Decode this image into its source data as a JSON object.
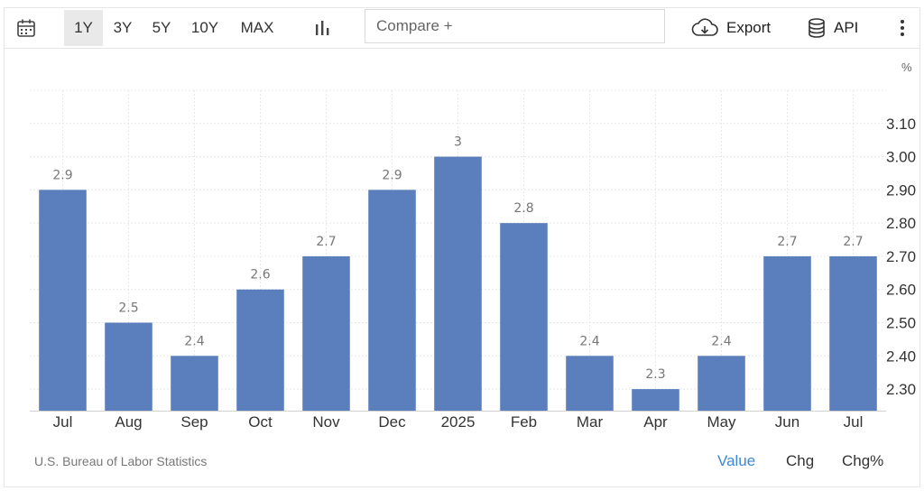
{
  "toolbar": {
    "ranges": [
      "1Y",
      "3Y",
      "5Y",
      "10Y",
      "MAX"
    ],
    "active_range": "1Y",
    "compare_placeholder": "Compare +",
    "export_label": "Export",
    "api_label": "API",
    "icons": [
      "calendar-icon",
      "bar-chart-icon",
      "cloud-download-icon",
      "database-icon",
      "more-vertical-icon"
    ]
  },
  "unit_label": "%",
  "source": "U.S. Bureau of Labor Statistics",
  "view_options": [
    {
      "label": "Value",
      "active": true
    },
    {
      "label": "Chg",
      "active": false
    },
    {
      "label": "Chg%",
      "active": false
    }
  ],
  "colors": {
    "bar": "#5b7fbd",
    "active_link": "#3d88d6",
    "grid": "#e8e8e8",
    "data_label": "#777777"
  },
  "chart_data": {
    "type": "bar",
    "categories": [
      "Jul",
      "Aug",
      "Sep",
      "Oct",
      "Nov",
      "Dec",
      "2025",
      "Feb",
      "Mar",
      "Apr",
      "May",
      "Jun",
      "Jul"
    ],
    "values": [
      2.9,
      2.5,
      2.4,
      2.6,
      2.7,
      2.9,
      3,
      2.8,
      2.4,
      2.3,
      2.4,
      2.7,
      2.7
    ],
    "data_labels": [
      "2.9",
      "2.5",
      "2.4",
      "2.6",
      "2.7",
      "2.9",
      "3",
      "2.8",
      "2.4",
      "2.3",
      "2.4",
      "2.7",
      "2.7"
    ],
    "yticks": [
      2.3,
      2.4,
      2.5,
      2.6,
      2.7,
      2.8,
      2.9,
      3.0,
      3.1
    ],
    "ytick_labels": [
      "2.30",
      "2.40",
      "2.50",
      "2.60",
      "2.70",
      "2.80",
      "2.90",
      "3.00",
      "3.10"
    ],
    "ylim": [
      2.235,
      3.2
    ],
    "y_axis_position": "right",
    "grid": true
  }
}
